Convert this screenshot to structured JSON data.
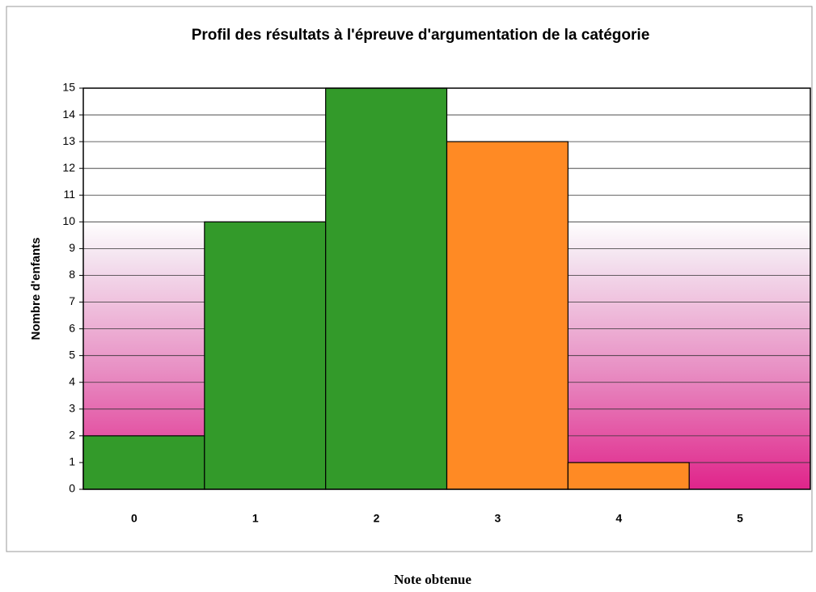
{
  "chart_data": {
    "type": "bar",
    "title": "Profil des résultats à l'épreuve d'argumentation de la catégorie",
    "x_label": "Note obtenue",
    "y_label": "Nombre d'enfants",
    "categories": [
      "0",
      "1",
      "2",
      "3",
      "4",
      "5"
    ],
    "values": [
      2,
      10,
      15,
      13,
      1,
      0
    ],
    "colors": [
      "#339a2a",
      "#339a2a",
      "#339a2a",
      "#ff8a24",
      "#ff8a24",
      "#ff8a24"
    ],
    "ylim": [
      0,
      15
    ],
    "yticks": [
      0,
      1,
      2,
      3,
      4,
      5,
      6,
      7,
      8,
      9,
      10,
      11,
      12,
      13,
      14,
      15
    ],
    "grid": true
  }
}
